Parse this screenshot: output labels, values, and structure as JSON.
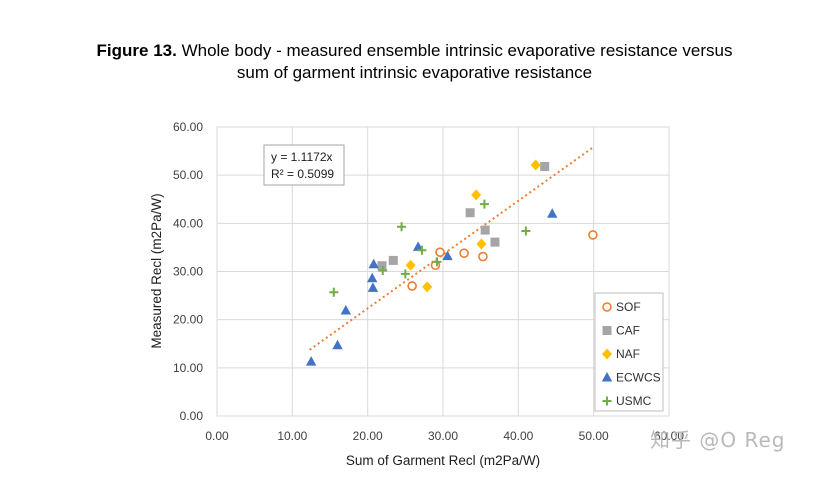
{
  "caption": {
    "label": "Figure 13.",
    "line1": "Whole body - measured ensemble intrinsic evaporative resistance versus",
    "line2": "sum of garment intrinsic evaporative resistance"
  },
  "watermark": "知乎 @O Reg",
  "chart_data": {
    "type": "scatter",
    "title": "",
    "xlabel": "Sum of Garment Recl (m2Pa/W)",
    "ylabel": "Measured Recl (m2Pa/W)",
    "xlim": [
      0,
      60
    ],
    "ylim": [
      0,
      60
    ],
    "xticks": [
      "0.00",
      "10.00",
      "20.00",
      "30.00",
      "40.00",
      "50.00",
      "60.00"
    ],
    "yticks": [
      "0.00",
      "10.00",
      "20.00",
      "30.00",
      "40.00",
      "50.00",
      "60.00"
    ],
    "grid": true,
    "legend_position": "bottom-right",
    "trendline": {
      "equation": "y = 1.1172x",
      "r2": "R² = 0.5099",
      "slope": 1.1172,
      "x_range": [
        12.3,
        49.9
      ],
      "color": "#ED7D31"
    },
    "series": [
      {
        "name": "SOF",
        "marker": "circle",
        "color": "#ED7D31",
        "points": [
          [
            25.9,
            27.0
          ],
          [
            29.0,
            31.3
          ],
          [
            29.6,
            34.0
          ],
          [
            32.8,
            33.8
          ],
          [
            35.3,
            33.1
          ],
          [
            49.9,
            37.6
          ]
        ]
      },
      {
        "name": "CAF",
        "marker": "square",
        "color": "#A5A5A5",
        "points": [
          [
            21.9,
            31.2
          ],
          [
            23.4,
            32.3
          ],
          [
            33.6,
            42.2
          ],
          [
            35.6,
            38.6
          ],
          [
            36.9,
            36.1
          ],
          [
            43.5,
            51.8
          ]
        ]
      },
      {
        "name": "NAF",
        "marker": "diamond",
        "color": "#FFC000",
        "points": [
          [
            25.7,
            31.3
          ],
          [
            27.9,
            26.8
          ],
          [
            34.4,
            45.9
          ],
          [
            35.1,
            35.7
          ],
          [
            42.3,
            52.1
          ]
        ]
      },
      {
        "name": "ECWCS",
        "marker": "triangle",
        "color": "#4472C4",
        "points": [
          [
            12.5,
            11.3
          ],
          [
            16.0,
            14.7
          ],
          [
            17.1,
            21.9
          ],
          [
            20.6,
            28.6
          ],
          [
            20.7,
            26.6
          ],
          [
            20.8,
            31.5
          ],
          [
            26.7,
            35.1
          ],
          [
            30.6,
            33.2
          ],
          [
            44.5,
            42.0
          ]
        ]
      },
      {
        "name": "USMC",
        "marker": "plus",
        "color": "#70AD47",
        "points": [
          [
            15.5,
            25.7
          ],
          [
            22.0,
            30.2
          ],
          [
            24.5,
            39.3
          ],
          [
            25.0,
            29.5
          ],
          [
            27.2,
            34.4
          ],
          [
            29.2,
            32.0
          ],
          [
            35.5,
            44.0
          ],
          [
            41.0,
            38.4
          ]
        ]
      }
    ]
  }
}
